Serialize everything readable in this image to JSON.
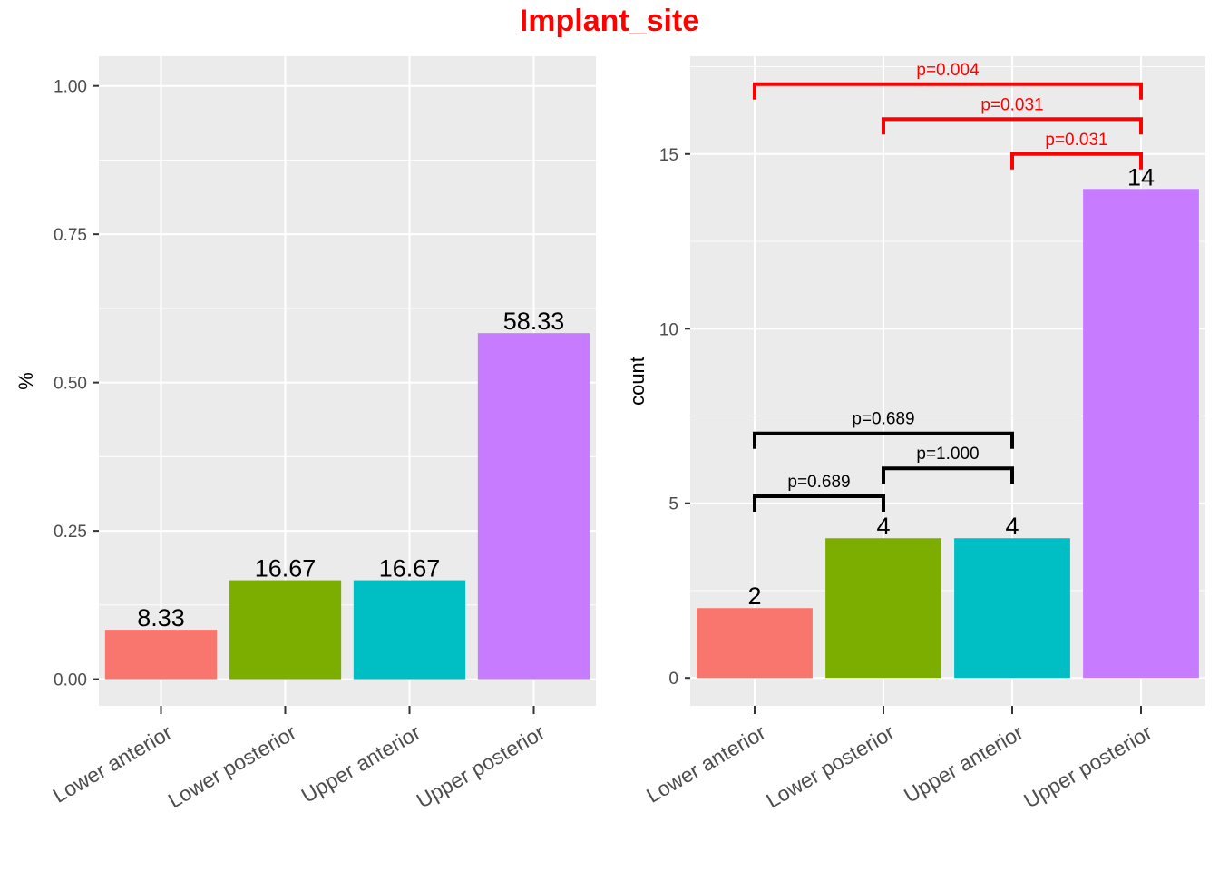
{
  "title": "Implant_site",
  "colors": {
    "title": "#ff0000",
    "panel": "#ebebeb",
    "grid": "#ffffff",
    "Lower anterior": "#f8766d",
    "Lower posterior": "#7cae00",
    "Upper anterior": "#00bfc4",
    "Upper posterior": "#c77cff",
    "bracket_black": "#000000",
    "bracket_red": "#ff0000"
  },
  "chart_data": [
    {
      "type": "bar",
      "title": "",
      "xlabel": "",
      "ylabel": "%",
      "categories": [
        "Lower anterior",
        "Lower posterior",
        "Upper anterior",
        "Upper posterior"
      ],
      "values": [
        0.0833,
        0.1667,
        0.1667,
        0.5833
      ],
      "labels": [
        "8.33",
        "16.67",
        "16.67",
        "58.33"
      ],
      "ylim": [
        -0.045,
        1.05
      ],
      "yticks": [
        0,
        0.25,
        0.5,
        0.75,
        1.0
      ],
      "ytick_labels": [
        "0.00",
        "0.25",
        "0.50",
        "0.75",
        "1.00"
      ],
      "grid": true,
      "legend": "none"
    },
    {
      "type": "bar",
      "title": "",
      "xlabel": "",
      "ylabel": "count",
      "categories": [
        "Lower anterior",
        "Lower posterior",
        "Upper anterior",
        "Upper posterior"
      ],
      "values": [
        2,
        4,
        4,
        14
      ],
      "labels": [
        "2",
        "4",
        "4",
        "14"
      ],
      "ylim": [
        -0.8,
        17.8
      ],
      "yticks": [
        0,
        5,
        10,
        15
      ],
      "ytick_labels": [
        "0",
        "5",
        "10",
        "15"
      ],
      "grid": true,
      "legend": "none",
      "comparisons": [
        {
          "from": 0,
          "to": 1,
          "y": 5.2,
          "label": "p=0.689",
          "color": "black"
        },
        {
          "from": 1,
          "to": 2,
          "y": 6.0,
          "label": "p=1.000",
          "color": "black"
        },
        {
          "from": 0,
          "to": 2,
          "y": 7.0,
          "label": "p=0.689",
          "color": "black"
        },
        {
          "from": 2,
          "to": 3,
          "y": 15.0,
          "label": "p=0.031",
          "color": "red"
        },
        {
          "from": 1,
          "to": 3,
          "y": 16.0,
          "label": "p=0.031",
          "color": "red"
        },
        {
          "from": 0,
          "to": 3,
          "y": 17.0,
          "label": "p=0.004",
          "color": "red"
        }
      ]
    }
  ]
}
